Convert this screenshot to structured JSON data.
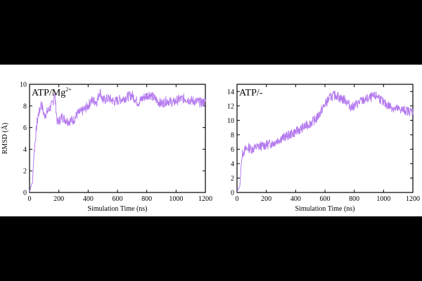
{
  "chart_data": [
    {
      "type": "line",
      "label_main": "ATP/Mg",
      "label_sup": "2+",
      "xlabel": "Simulation Time (ns)",
      "ylabel": "RMSD (Å)",
      "xlim": [
        0,
        1200
      ],
      "ylim": [
        0,
        10
      ],
      "xticks": [
        0,
        200,
        400,
        600,
        800,
        1000,
        1200
      ],
      "yticks": [
        0,
        2,
        4,
        6,
        8,
        10
      ],
      "series": [
        {
          "name": "ATP/Mg2+",
          "color": "#b57bef",
          "x": [
            0,
            10,
            20,
            30,
            40,
            50,
            60,
            70,
            80,
            100,
            130,
            160,
            170,
            190,
            220,
            260,
            300,
            330,
            360,
            400,
            420,
            460,
            480,
            500,
            540,
            580,
            620,
            660,
            700,
            740,
            780,
            820,
            860,
            900,
            940,
            980,
            1020,
            1060,
            1100,
            1140,
            1180,
            1200
          ],
          "y": [
            0.1,
            0.6,
            0.9,
            3.5,
            5.0,
            6.3,
            7.2,
            7.6,
            8.3,
            7.1,
            7.6,
            8.3,
            9.2,
            6.4,
            7.0,
            6.6,
            6.7,
            7.3,
            7.5,
            8.0,
            8.5,
            8.4,
            9.4,
            8.5,
            8.7,
            8.4,
            8.6,
            8.8,
            9.0,
            8.3,
            8.8,
            9.1,
            8.6,
            8.2,
            8.5,
            8.3,
            8.6,
            8.7,
            8.5,
            8.4,
            8.3,
            8.4
          ]
        }
      ]
    },
    {
      "type": "line",
      "label_main": "ATP/-",
      "label_sup": "",
      "xlabel": "Simulation Time (ns)",
      "ylabel": "",
      "xlim": [
        0,
        1200
      ],
      "ylim": [
        0,
        15
      ],
      "xticks": [
        0,
        200,
        400,
        600,
        800,
        1000,
        1200
      ],
      "yticks": [
        0,
        2,
        4,
        6,
        8,
        10,
        12,
        14
      ],
      "series": [
        {
          "name": "ATP/-",
          "color": "#b57bef",
          "x": [
            0,
            10,
            20,
            30,
            40,
            60,
            80,
            100,
            150,
            200,
            250,
            300,
            350,
            400,
            450,
            500,
            540,
            560,
            600,
            640,
            680,
            700,
            740,
            780,
            800,
            840,
            880,
            920,
            960,
            1000,
            1040,
            1080,
            1120,
            1160,
            1200
          ],
          "y": [
            0.1,
            0.5,
            1.0,
            4.5,
            5.5,
            6.0,
            6.2,
            6.0,
            6.4,
            6.6,
            6.9,
            7.5,
            7.9,
            8.4,
            9.0,
            9.6,
            10.2,
            10.8,
            12.2,
            13.3,
            13.5,
            13.1,
            12.8,
            11.8,
            12.0,
            12.6,
            12.9,
            13.2,
            13.4,
            12.4,
            12.0,
            11.6,
            11.5,
            11.3,
            11.2
          ]
        }
      ]
    }
  ]
}
